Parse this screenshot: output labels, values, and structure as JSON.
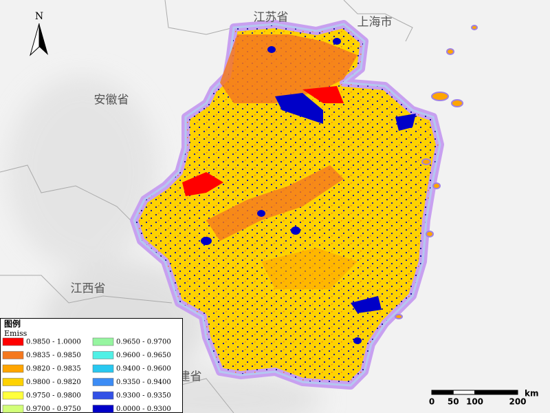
{
  "map_labels": [
    "江苏省",
    "上海市",
    "安徽省",
    "江西省",
    "福建省"
  ],
  "north_arrow": "N",
  "legend": {
    "title": "图例",
    "field": "Emiss",
    "entries": [
      {
        "label": "0.9850 - 1.0000",
        "color": "#ff0000"
      },
      {
        "label": "0.9835 - 0.9850",
        "color": "#f5781e"
      },
      {
        "label": "0.9820 - 0.9835",
        "color": "#ffa500"
      },
      {
        "label": "0.9800 - 0.9820",
        "color": "#ffd200"
      },
      {
        "label": "0.9750 - 0.9800",
        "color": "#ffff3c"
      },
      {
        "label": "0.9700 - 0.9750",
        "color": "#d2ff78"
      },
      {
        "label": "0.9650 - 0.9700",
        "color": "#96f5a0"
      },
      {
        "label": "0.9600 - 0.9650",
        "color": "#50f0e6"
      },
      {
        "label": "0.9400 - 0.9600",
        "color": "#28c8f0"
      },
      {
        "label": "0.9350 - 0.9400",
        "color": "#3c8cf5"
      },
      {
        "label": "0.9300 - 0.9350",
        "color": "#3250e6"
      },
      {
        "label": "0.0000 - 0.9300",
        "color": "#0000c8"
      }
    ]
  },
  "scale_bar": {
    "ticks": [
      0,
      50,
      100,
      200
    ],
    "unit": "km"
  }
}
